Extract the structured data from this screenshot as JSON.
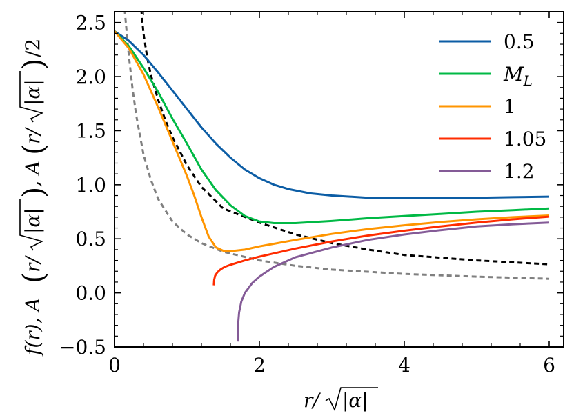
{
  "chart_data": {
    "type": "line",
    "title": "",
    "xlabel_parts": [
      "r/",
      "|α|"
    ],
    "ylabel_parts": [
      "f(r), A",
      "r/",
      "|α|",
      ", A",
      "r/",
      "|α|",
      "/2"
    ],
    "xlim": [
      0,
      6.2
    ],
    "ylim": [
      -0.5,
      2.6
    ],
    "xticks": [
      0,
      2,
      4,
      6
    ],
    "xtick_labels": [
      "0",
      "2",
      "4",
      "6"
    ],
    "yticks": [
      -0.5,
      0.0,
      0.5,
      1.0,
      1.5,
      2.0,
      2.5
    ],
    "ytick_labels": [
      "−0.5",
      "0.0",
      "0.5",
      "1.0",
      "1.5",
      "2.0",
      "2.5"
    ],
    "grid": false,
    "legend_position": "top-right",
    "series": [
      {
        "name": "0.5",
        "legend_main": "0.5",
        "legend_sub": "",
        "color": "#0C5DA5",
        "dash": "none",
        "x": [
          0,
          0.2,
          0.4,
          0.6,
          0.8,
          1.0,
          1.2,
          1.4,
          1.6,
          1.8,
          2.0,
          2.2,
          2.4,
          2.7,
          3.0,
          3.5,
          4.0,
          4.5,
          5.0,
          5.5,
          6.0
        ],
        "y": [
          2.42,
          2.33,
          2.2,
          2.04,
          1.87,
          1.7,
          1.53,
          1.38,
          1.25,
          1.14,
          1.06,
          1.0,
          0.96,
          0.92,
          0.9,
          0.88,
          0.875,
          0.875,
          0.88,
          0.885,
          0.89
        ]
      },
      {
        "name": "M_L",
        "legend_main": "M",
        "legend_sub": "L",
        "color": "#00B945",
        "dash": "none",
        "x": [
          0,
          0.2,
          0.4,
          0.6,
          0.8,
          1.0,
          1.2,
          1.4,
          1.6,
          1.8,
          2.0,
          2.2,
          2.5,
          3.0,
          3.5,
          4.0,
          4.5,
          5.0,
          5.5,
          6.0
        ],
        "y": [
          2.42,
          2.28,
          2.08,
          1.86,
          1.61,
          1.38,
          1.14,
          0.95,
          0.81,
          0.71,
          0.66,
          0.645,
          0.645,
          0.665,
          0.69,
          0.71,
          0.73,
          0.75,
          0.765,
          0.78
        ]
      },
      {
        "name": "1",
        "legend_main": "1",
        "legend_sub": "",
        "color": "#FF9500",
        "dash": "none",
        "x": [
          0,
          0.2,
          0.4,
          0.6,
          0.8,
          1.0,
          1.1,
          1.2,
          1.3,
          1.4,
          1.5,
          1.6,
          1.8,
          2.0,
          2.5,
          3.0,
          3.5,
          4.0,
          4.5,
          5.0,
          5.5,
          6.0
        ],
        "y": [
          2.42,
          2.26,
          2.02,
          1.72,
          1.4,
          1.08,
          0.9,
          0.7,
          0.52,
          0.42,
          0.39,
          0.385,
          0.4,
          0.43,
          0.49,
          0.545,
          0.59,
          0.625,
          0.655,
          0.68,
          0.7,
          0.715
        ]
      },
      {
        "name": "1.05",
        "legend_main": "1.05",
        "legend_sub": "",
        "color": "#FF2C00",
        "dash": "none",
        "x": [
          1.37,
          1.375,
          1.39,
          1.42,
          1.46,
          1.52,
          1.6,
          1.8,
          2.0,
          2.5,
          3.0,
          3.5,
          4.0,
          4.5,
          5.0,
          5.5,
          6.0
        ],
        "y": [
          0.07,
          0.12,
          0.16,
          0.19,
          0.215,
          0.24,
          0.26,
          0.3,
          0.335,
          0.41,
          0.475,
          0.53,
          0.575,
          0.615,
          0.65,
          0.68,
          0.705
        ]
      },
      {
        "name": "1.2",
        "legend_main": "1.2",
        "legend_sub": "",
        "color": "#845B97",
        "dash": "none",
        "x": [
          1.7,
          1.705,
          1.72,
          1.75,
          1.8,
          1.9,
          2.0,
          2.2,
          2.5,
          3.0,
          3.5,
          4.0,
          4.5,
          5.0,
          5.5,
          6.0
        ],
        "y": [
          -0.45,
          -0.3,
          -0.18,
          -0.08,
          0.0,
          0.09,
          0.15,
          0.24,
          0.33,
          0.42,
          0.49,
          0.54,
          0.58,
          0.615,
          0.635,
          0.65
        ]
      },
      {
        "name": "black dashed reference",
        "legend_main": "",
        "legend_sub": "",
        "color": "#000000",
        "dash": "7,5",
        "x": [
          0.37,
          0.4,
          0.45,
          0.5,
          0.6,
          0.7,
          0.8,
          1.0,
          1.2,
          1.5,
          2.0,
          2.5,
          3.0,
          3.5,
          4.0,
          5.0,
          6.0
        ],
        "y": [
          2.62,
          2.4,
          2.18,
          2.02,
          1.79,
          1.6,
          1.44,
          1.18,
          0.98,
          0.78,
          0.65,
          0.54,
          0.46,
          0.4,
          0.35,
          0.3,
          0.265
        ]
      },
      {
        "name": "gray dashed reference",
        "legend_main": "",
        "legend_sub": "",
        "color": "#808080",
        "dash": "7,5",
        "x": [
          0.14,
          0.17,
          0.2,
          0.25,
          0.3,
          0.4,
          0.5,
          0.6,
          0.8,
          1.0,
          1.2,
          1.5,
          2.0,
          2.5,
          3.0,
          4.0,
          5.0,
          6.0
        ],
        "y": [
          2.62,
          2.4,
          2.18,
          1.88,
          1.64,
          1.28,
          1.05,
          0.87,
          0.66,
          0.54,
          0.46,
          0.38,
          0.3,
          0.25,
          0.215,
          0.175,
          0.15,
          0.13
        ]
      }
    ]
  }
}
